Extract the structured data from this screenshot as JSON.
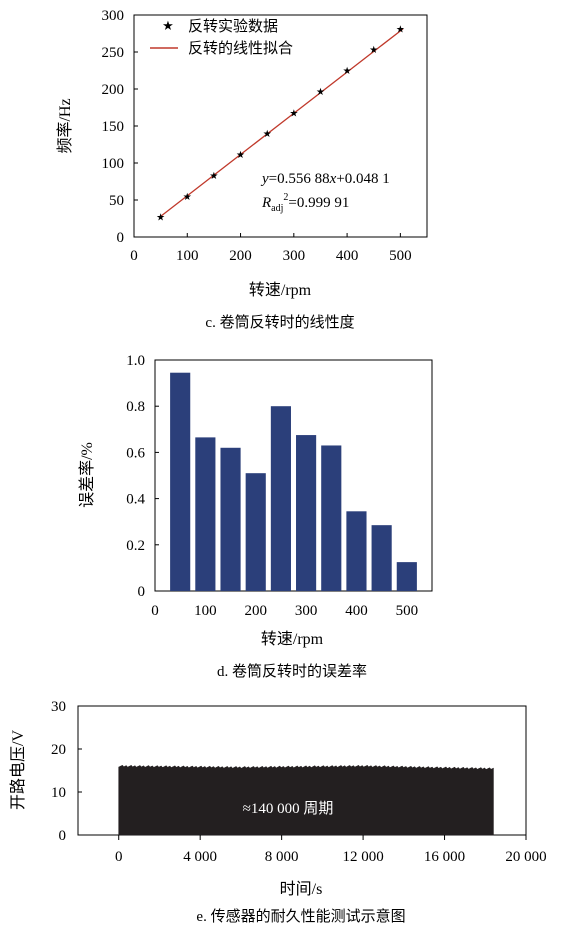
{
  "chart_data": [
    {
      "type": "scatter",
      "caption": "c. 卷筒反转时的线性度",
      "xlabel": "转速/rpm",
      "ylabel": "频率/Hz",
      "xlim": [
        0,
        550
      ],
      "ylim": [
        0,
        300
      ],
      "xticks": [
        "0",
        "100",
        "200",
        "300",
        "400",
        "500"
      ],
      "yticks": [
        "0",
        "50",
        "100",
        "150",
        "200",
        "250",
        "300"
      ],
      "legend": {
        "placement": "top-left",
        "entries": [
          "反转实验数据",
          "反转的线性拟合"
        ]
      },
      "series": [
        {
          "name": "反转实验数据",
          "x": [
            50,
            100,
            150,
            200,
            250,
            300,
            350,
            400,
            450,
            500
          ],
          "y": [
            27.5,
            55.5,
            84,
            112.5,
            140.5,
            168.5,
            197,
            226,
            254,
            282
          ]
        },
        {
          "name": "反转的线性拟合",
          "x": [
            50,
            505
          ],
          "y": [
            27.9,
            281.3
          ]
        }
      ],
      "annotation": {
        "eq_y": "y",
        "eq_rest": "=0.556 88",
        "eq_x": "x",
        "eq_tail": "+0.048 1",
        "r_letter": "R",
        "r_sub": "adj",
        "r_sup": "2",
        "r_value": "=0.999 91"
      },
      "colors": {
        "fit_line": "#c0392b",
        "markers": "#000000"
      }
    },
    {
      "type": "bar",
      "caption": "d. 卷筒反转时的误差率",
      "xlabel": "转速/rpm",
      "ylabel": "误差率/%",
      "xlim": [
        0,
        550
      ],
      "ylim": [
        0,
        1.0
      ],
      "xticks": [
        "0",
        "100",
        "200",
        "300",
        "400",
        "500"
      ],
      "yticks": [
        "0",
        "0.2",
        "0.4",
        "0.6",
        "0.8",
        "1.0"
      ],
      "categories": [
        50,
        100,
        150,
        200,
        250,
        300,
        350,
        400,
        450,
        500
      ],
      "values": [
        0.945,
        0.665,
        0.62,
        0.51,
        0.8,
        0.675,
        0.63,
        0.345,
        0.285,
        0.125
      ],
      "colors": {
        "bar": "#2b3f7a"
      }
    },
    {
      "type": "area",
      "caption": "e. 传感器的耐久性能测试示意图",
      "xlabel": "时间/s",
      "ylabel": "开路电压/V",
      "xlim": [
        -2000,
        20000
      ],
      "ylim": [
        0,
        30
      ],
      "xticks": [
        "0",
        "4 000",
        "8 000",
        "12 000",
        "16 000",
        "20 000"
      ],
      "yticks": [
        "0",
        "10",
        "20",
        "30"
      ],
      "x": [
        0,
        2000,
        4000,
        6000,
        8000,
        10000,
        12000,
        14000,
        16000,
        18400
      ],
      "y": [
        16.0,
        15.9,
        15.8,
        15.7,
        15.8,
        15.9,
        16.0,
        15.8,
        15.6,
        15.4
      ],
      "annotation": "≈140 000 周期",
      "colors": {
        "fill": "#231f20"
      }
    }
  ]
}
